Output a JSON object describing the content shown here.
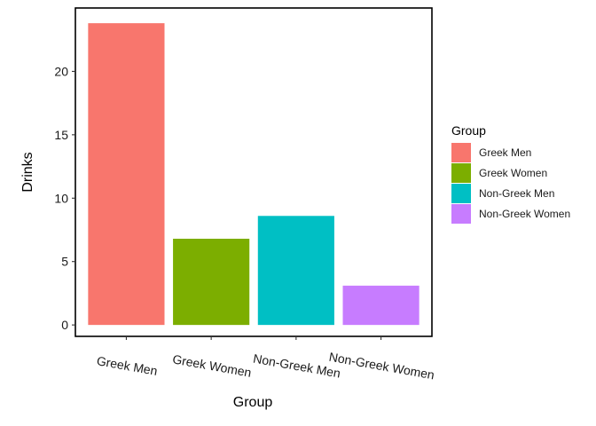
{
  "chart_data": {
    "type": "bar",
    "categories": [
      "Greek Men",
      "Greek Women",
      "Non-Greek Men",
      "Non-Greek Women"
    ],
    "values": [
      23.8,
      6.8,
      8.6,
      3.1
    ],
    "colors": [
      "#F8766D",
      "#7CAE00",
      "#00BFC4",
      "#C77CFF"
    ],
    "xlabel": "Group",
    "ylabel": "Drinks",
    "ylim": [
      -0.9,
      25
    ],
    "yticks": [
      0,
      5,
      10,
      15,
      20
    ],
    "grid": false,
    "legend": {
      "title": "Group",
      "placement": "right",
      "entries": [
        "Greek Men",
        "Greek Women",
        "Non-Greek Men",
        "Non-Greek Women"
      ]
    }
  }
}
